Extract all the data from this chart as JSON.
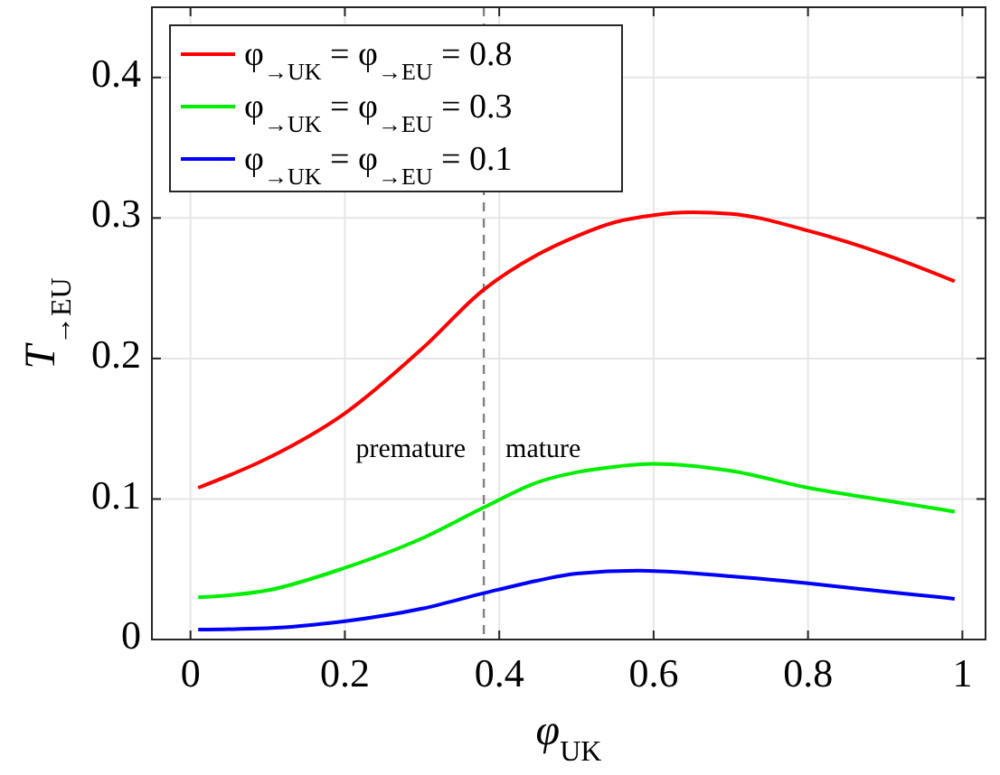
{
  "chart_data": {
    "type": "line",
    "xlabel": "φ$_{UK}$",
    "ylabel": "T$_{→EU}$",
    "xlim": [
      -0.05,
      1.03
    ],
    "ylim": [
      0,
      0.45
    ],
    "xticks": [
      0,
      0.2,
      0.4,
      0.6,
      0.8,
      1
    ],
    "yticks": [
      0,
      0.1,
      0.2,
      0.3,
      0.4
    ],
    "grid": true,
    "legend": "top left",
    "line_style": "solid",
    "series": [
      {
        "name": "φ$_{→UK}$ = φ$_{→EU}$ = 0.8",
        "color": "#ff0000",
        "x": [
          0.01,
          0.1,
          0.2,
          0.3,
          0.38,
          0.45,
          0.5,
          0.55,
          0.6,
          0.65,
          0.7,
          0.8,
          0.9,
          0.99
        ],
        "values": [
          0.108,
          0.129,
          0.161,
          0.207,
          0.249,
          0.274,
          0.287,
          0.297,
          0.302,
          0.304,
          0.303,
          0.291,
          0.274,
          0.255
        ]
      },
      {
        "name": "φ$_{→UK}$ = φ$_{→EU}$ = 0.3",
        "color": "#00ee00",
        "x": [
          0.01,
          0.1,
          0.2,
          0.3,
          0.38,
          0.45,
          0.5,
          0.55,
          0.6,
          0.7,
          0.8,
          0.9,
          0.99
        ],
        "values": [
          0.03,
          0.035,
          0.051,
          0.072,
          0.094,
          0.112,
          0.119,
          0.123,
          0.125,
          0.12,
          0.108,
          0.099,
          0.091
        ]
      },
      {
        "name": "φ$_{→UK}$ = φ$_{→EU}$ = 0.1",
        "color": "#0000ff",
        "x": [
          0.01,
          0.1,
          0.2,
          0.3,
          0.38,
          0.45,
          0.5,
          0.58,
          0.7,
          0.8,
          0.9,
          0.99
        ],
        "values": [
          0.007,
          0.008,
          0.013,
          0.022,
          0.033,
          0.042,
          0.047,
          0.049,
          0.045,
          0.04,
          0.034,
          0.029
        ]
      }
    ],
    "ref_lines": [
      {
        "axis": "x",
        "value": 0.38,
        "color": "#808080",
        "line_style": "dashed"
      }
    ],
    "annotations": [
      "premature",
      "mature"
    ]
  }
}
